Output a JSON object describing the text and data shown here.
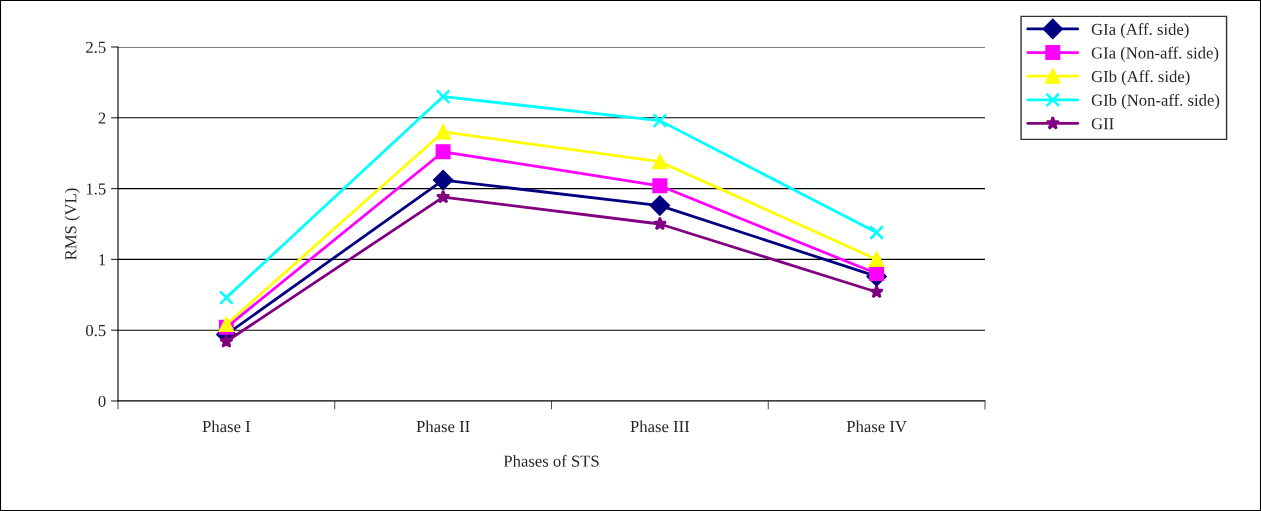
{
  "chart_data": {
    "type": "line",
    "xlabel": "Phases of STS",
    "ylabel": "RMS (VL)",
    "categories": [
      "Phase I",
      "Phase II",
      "Phase III",
      "Phase IV"
    ],
    "series": [
      {
        "name": "GIa (Aff. side)",
        "color": "#000080",
        "marker": "diamond",
        "values": [
          0.47,
          1.56,
          1.38,
          0.88
        ]
      },
      {
        "name": "GIa (Non-aff. side)",
        "color": "#ff00ff",
        "marker": "square",
        "values": [
          0.52,
          1.76,
          1.52,
          0.9
        ]
      },
      {
        "name": "GIb (Aff. side)",
        "color": "#ffff00",
        "marker": "triangle",
        "values": [
          0.54,
          1.9,
          1.69,
          1.0
        ]
      },
      {
        "name": "GIb (Non-aff. side)",
        "color": "#00ffff",
        "marker": "cross",
        "values": [
          0.73,
          2.15,
          1.98,
          1.19
        ]
      },
      {
        "name": "GII",
        "color": "#800080",
        "marker": "star",
        "values": [
          0.42,
          1.44,
          1.25,
          0.77
        ]
      }
    ],
    "ylim": [
      0,
      2.5
    ],
    "yticks": [
      0,
      0.5,
      1,
      1.5,
      2,
      2.5
    ],
    "grid": "y",
    "legend": "top right",
    "line_style": "solid"
  }
}
